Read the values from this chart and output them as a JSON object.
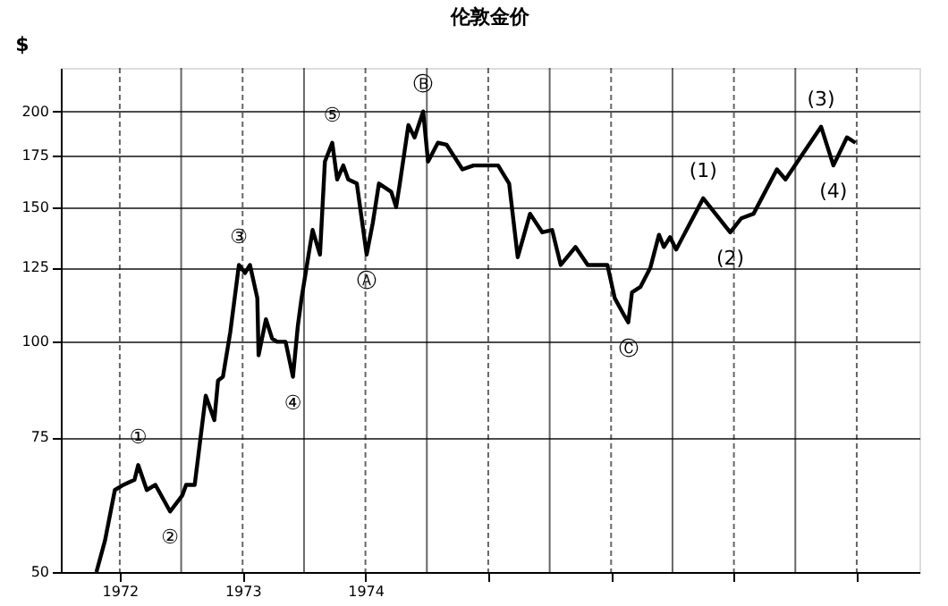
{
  "chart_data": {
    "type": "line",
    "title": "伦敦金价",
    "ylabel": "$",
    "log": true,
    "grid": true,
    "marker": "none",
    "line_style": "solid",
    "x": [
      1971.81,
      1971.88,
      1971.96,
      1972.03,
      1972.12,
      1972.15,
      1972.22,
      1972.29,
      1972.41,
      1972.51,
      1972.54,
      1972.61,
      1972.7,
      1972.77,
      1972.8,
      1972.84,
      1972.9,
      1972.97,
      1973.02,
      1973.06,
      1973.12,
      1973.13,
      1973.19,
      1973.24,
      1973.28,
      1973.35,
      1973.41,
      1973.45,
      1973.48,
      1973.57,
      1973.63,
      1973.67,
      1973.73,
      1973.77,
      1973.82,
      1973.86,
      1973.93,
      1974.01,
      1974.06,
      1974.11,
      1974.21,
      1974.25,
      1974.28,
      1974.35,
      1974.4,
      1974.47,
      1974.51,
      1974.59,
      1974.66,
      1974.79,
      1974.88,
      1974.95,
      1975.08,
      1975.17,
      1975.24,
      1975.34,
      1975.44,
      1975.52,
      1975.59,
      1975.71,
      1975.81,
      1975.97,
      1976.03,
      1976.11,
      1976.14,
      1976.17,
      1976.24,
      1976.32,
      1976.39,
      1976.43,
      1976.48,
      1976.53,
      1976.75,
      1976.97,
      1977.06,
      1977.16,
      1977.35,
      1977.42,
      1977.71,
      1977.81,
      1977.92,
      1977.99
    ],
    "series": [
      {
        "color": "#000000",
        "values": [
          50,
          55,
          64,
          65,
          66,
          69,
          64,
          65,
          60,
          63,
          65,
          65,
          85,
          79,
          89,
          90,
          103,
          126,
          123,
          126,
          114,
          96,
          107,
          101,
          100,
          100,
          90,
          105,
          114,
          140,
          130,
          172,
          182,
          163,
          170,
          163,
          161,
          130,
          143,
          161,
          157,
          150,
          161,
          192,
          185,
          200,
          172,
          182,
          181,
          168,
          170,
          170,
          170,
          161,
          129,
          147,
          139,
          140,
          126,
          133,
          126,
          126,
          114,
          108,
          106,
          116,
          118,
          125,
          138,
          133,
          137,
          132,
          154,
          139,
          145,
          147,
          168,
          163,
          191,
          170,
          185,
          182
        ]
      }
    ],
    "xlim": [
      1971.52,
      1978.51
    ],
    "xticks": [
      {
        "value": 1972,
        "label": "1972"
      },
      {
        "value": 1972.5,
        "label": null
      },
      {
        "value": 1973,
        "label": "1973"
      },
      {
        "value": 1973.5,
        "label": null
      },
      {
        "value": 1974,
        "label": "1974"
      },
      {
        "value": 1974.5,
        "label": null
      },
      {
        "value": 1975,
        "label": null
      },
      {
        "value": 1975.5,
        "label": null
      },
      {
        "value": 1976,
        "label": null
      },
      {
        "value": 1976.5,
        "label": null
      },
      {
        "value": 1977,
        "label": null
      },
      {
        "value": 1977.5,
        "label": null
      },
      {
        "value": 1978,
        "label": null
      }
    ],
    "ylim": [
      50,
      228
    ],
    "yticks": [
      50,
      75,
      100,
      125,
      150,
      175,
      200
    ],
    "annotations": [
      {
        "text": "①",
        "x": 1972.15,
        "y": 69
      },
      {
        "text": "②",
        "x": 1972.41,
        "y": 60
      },
      {
        "text": "③",
        "x": 1972.97,
        "y": 126
      },
      {
        "text": "④",
        "x": 1973.41,
        "y": 90
      },
      {
        "text": "⑤",
        "x": 1973.73,
        "y": 182
      },
      {
        "text": "Ⓐ",
        "x": 1974.01,
        "y": 130
      },
      {
        "text": "Ⓑ",
        "x": 1974.47,
        "y": 200
      },
      {
        "text": "Ⓒ",
        "x": 1976.14,
        "y": 106
      },
      {
        "text": "(1)",
        "x": 1976.75,
        "y": 154
      },
      {
        "text": "(2)",
        "x": 1976.97,
        "y": 139
      },
      {
        "text": "(3)",
        "x": 1977.71,
        "y": 191
      },
      {
        "text": "(4)",
        "x": 1977.81,
        "y": 170
      }
    ]
  }
}
